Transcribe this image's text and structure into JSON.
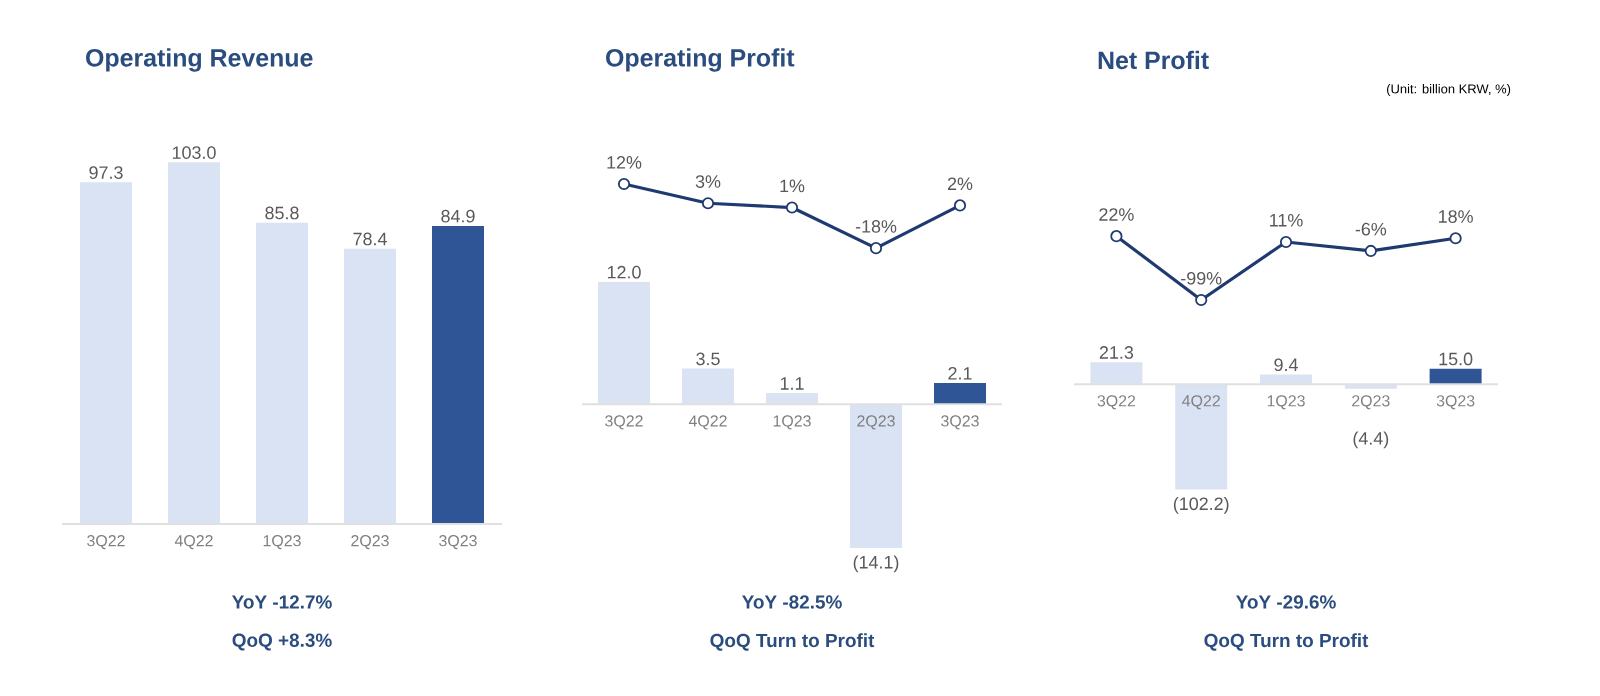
{
  "chart_data": [
    {
      "type": "bar",
      "title": "Operating Revenue",
      "categories": [
        "3Q22",
        "4Q22",
        "1Q23",
        "2Q23",
        "3Q23"
      ],
      "series": [
        {
          "values": [
            97.3,
            103.0,
            85.8,
            78.4,
            84.9
          ],
          "colors": [
            "#dae3f3",
            "#dae3f3",
            "#dae3f3",
            "#dae3f3",
            "#2f5597"
          ],
          "value_labels": [
            "97.3",
            "103.0",
            "85.8",
            "78.4",
            "84.9"
          ]
        }
      ],
      "tick_labels": "x",
      "annotations": [
        "YoY -12.7%",
        "QoQ +8.3%"
      ]
    },
    {
      "type": "line",
      "title": "Operating Profit",
      "categories": [
        null,
        null,
        null,
        null,
        null
      ],
      "series": [
        {
          "values": [
            12,
            3,
            1,
            -18,
            2
          ],
          "color": "#1f3a70",
          "marker": "circle",
          "value_labels": [
            "12%",
            "3%",
            "1%",
            "-18%",
            "2%"
          ]
        }
      ],
      "tick_labels": false
    },
    {
      "type": "bar",
      "categories": [
        "3Q22",
        "4Q22",
        "1Q23",
        "2Q23",
        "3Q23"
      ],
      "series": [
        {
          "values": [
            12.0,
            3.5,
            1.1,
            -14.1,
            2.1
          ],
          "colors": [
            "#dae3f3",
            "#dae3f3",
            "#dae3f3",
            "#dae3f3",
            "#2f5597"
          ],
          "value_labels": [
            "12.0",
            "3.5",
            "1.1",
            "(14.1)",
            "2.1"
          ]
        }
      ],
      "tick_labels": "x",
      "annotations": [
        "YoY -82.5%",
        "QoQ Turn to Profit"
      ]
    },
    {
      "type": "line",
      "title": "Net Profit",
      "subtitle": "(Unit: billion KRW, %)",
      "categories": [
        null,
        null,
        null,
        null,
        null
      ],
      "series": [
        {
          "values": [
            22,
            -99,
            11,
            -6,
            18
          ],
          "color": "#1f3a70",
          "marker": "circle",
          "value_labels": [
            "22%",
            "-99%",
            "11%",
            "-6%",
            "18%"
          ]
        }
      ],
      "tick_labels": false
    },
    {
      "type": "bar",
      "categories": [
        "3Q22",
        "4Q22",
        "1Q23",
        "2Q23",
        "3Q23"
      ],
      "series": [
        {
          "values": [
            21.3,
            -102.2,
            9.4,
            -4.4,
            15.0
          ],
          "colors": [
            "#dae3f3",
            "#dae3f3",
            "#dae3f3",
            "#dae3f3",
            "#2f5597"
          ],
          "value_labels": [
            "21.3",
            "(102.2)",
            "9.4",
            "(4.4)",
            "15.0"
          ]
        }
      ],
      "tick_labels": "x",
      "annotations": [
        "YoY -29.6%",
        "QoQ Turn to Profit"
      ]
    }
  ]
}
